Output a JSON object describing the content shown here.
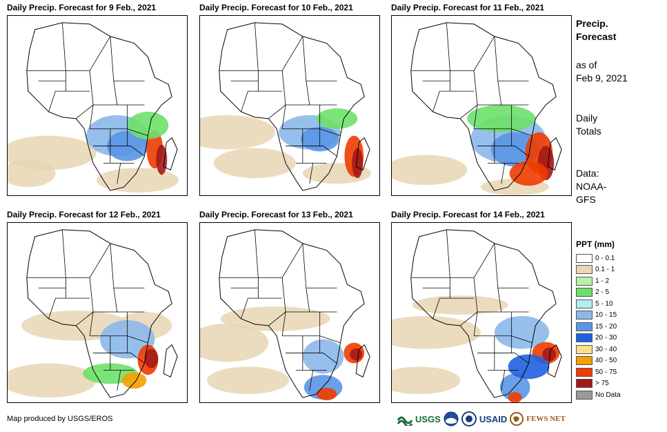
{
  "panels": [
    {
      "title": "Daily Precip. Forecast for 9 Feb., 2021"
    },
    {
      "title": "Daily Precip. Forecast for 10 Feb., 2021"
    },
    {
      "title": "Daily Precip. Forecast for 11 Feb., 2021"
    },
    {
      "title": "Daily Precip. Forecast for 12 Feb., 2021"
    },
    {
      "title": "Daily Precip. Forecast for 13 Feb., 2021"
    },
    {
      "title": "Daily Precip. Forecast for 14 Feb., 2021"
    }
  ],
  "info": {
    "title_line1": "Precip.",
    "title_line2": "Forecast",
    "asof_line1": "as of",
    "asof_line2": "Feb 9, 2021",
    "totals_line1": "Daily",
    "totals_line2": "Totals",
    "data_line1": "Data:",
    "data_line2": "NOAA-",
    "data_line3": "GFS"
  },
  "legend": {
    "title": "PPT (mm)",
    "items": [
      {
        "label": "0 - 0.1",
        "color": "#ffffff"
      },
      {
        "label": "0.1 - 1",
        "color": "#e8d6b4"
      },
      {
        "label": "1 - 2",
        "color": "#b8f0a8"
      },
      {
        "label": "2 - 5",
        "color": "#6ee06a"
      },
      {
        "label": "5 - 10",
        "color": "#b4ecf4"
      },
      {
        "label": "10 - 15",
        "color": "#8cb8ea"
      },
      {
        "label": "15 - 20",
        "color": "#5a96e6"
      },
      {
        "label": "20 - 30",
        "color": "#2060e0"
      },
      {
        "label": "30 - 40",
        "color": "#f8e08c"
      },
      {
        "label": "40 - 50",
        "color": "#f4a000"
      },
      {
        "label": "50 - 75",
        "color": "#f03c00"
      },
      {
        "label": "> 75",
        "color": "#a41818"
      },
      {
        "label": "No Data",
        "color": "#9a9a9a"
      }
    ]
  },
  "footer": {
    "credit": "Map produced by USGS/EROS",
    "logo_usgs": "USGS",
    "logo_usaid": "USAID",
    "logo_fews": "FEWS NET"
  }
}
